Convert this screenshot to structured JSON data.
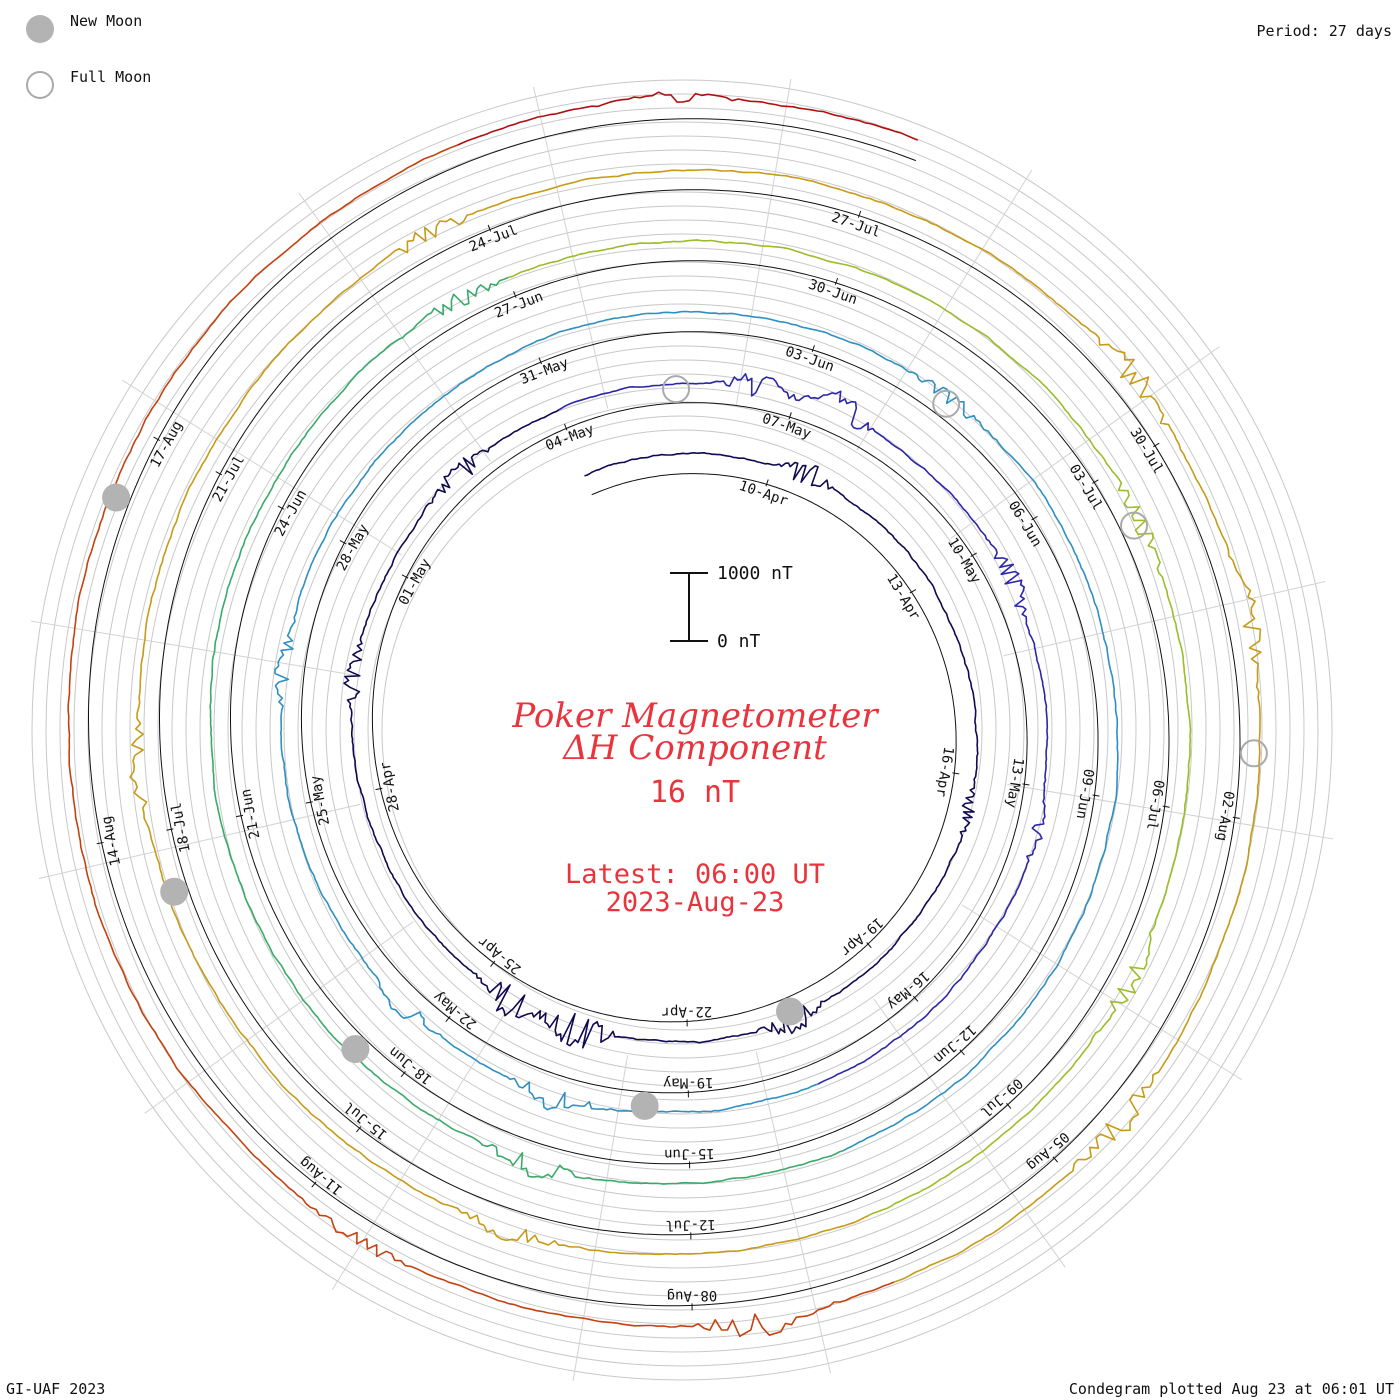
{
  "legend": {
    "new_moon_label": "New Moon",
    "full_moon_label": "Full Moon",
    "new_moon_color": "#b3b3b3",
    "full_moon_color": "#aaaaaa"
  },
  "header": {
    "period": "Period: 27 days"
  },
  "footer": {
    "credit": "GI-UAF 2023",
    "plotted": "Condegram plotted Aug 23 at 06:01 UT"
  },
  "center": {
    "title_line1": "Poker Magnetometer",
    "title_line2": "ΔH Component",
    "value": "16 nT",
    "latest_line1": "Latest: 06:00 UT",
    "latest_line2": "2023-Aug-23"
  },
  "scale": {
    "top_label": "1000 nT",
    "bottom_label": "0 nT",
    "span_nT": 1000
  },
  "chart_data": {
    "type": "line",
    "subtype": "condegram-spiral",
    "period_days": 27,
    "start_date": "2023-04-07",
    "end_date": "2023-08-23",
    "grid": true,
    "series_colors": [
      "#100a50",
      "#2c27a8",
      "#2f8fc0",
      "#3aaa6a",
      "#9bbd2a",
      "#c79a18",
      "#c4420f",
      "#b01010"
    ],
    "date_labels": [
      "10-Apr",
      "13-Apr",
      "16-Apr",
      "19-Apr",
      "22-Apr",
      "25-Apr",
      "28-Apr",
      "01-May",
      "04-May",
      "07-May",
      "10-May",
      "13-May",
      "16-May",
      "19-May",
      "22-May",
      "25-May",
      "28-May",
      "31-May",
      "03-Jun",
      "06-Jun",
      "09-Jun",
      "12-Jun",
      "15-Jun",
      "18-Jun",
      "21-Jun",
      "24-Jun",
      "27-Jun",
      "30-Jun",
      "03-Jul",
      "06-Jul",
      "09-Jul",
      "12-Jul",
      "15-Jul",
      "18-Jul",
      "21-Jul",
      "24-Jul",
      "27-Jul",
      "30-Jul",
      "02-Aug",
      "05-Aug",
      "08-Aug",
      "11-Aug",
      "14-Aug",
      "17-Aug"
    ],
    "new_moons": [
      "2023-04-20",
      "2023-05-19",
      "2023-06-18",
      "2023-07-17",
      "2023-08-16"
    ],
    "full_moons": [
      "2023-05-05",
      "2023-06-04",
      "2023-07-03",
      "2023-08-01"
    ],
    "disturbances": [
      {
        "date": "2023-04-10",
        "peak_nT": 260
      },
      {
        "date": "2023-04-16",
        "peak_nT": 120
      },
      {
        "date": "2023-04-20",
        "peak_nT": 230
      },
      {
        "date": "2023-04-23",
        "peak_nT": 480
      },
      {
        "date": "2023-04-24",
        "peak_nT": 300
      },
      {
        "date": "2023-04-29",
        "peak_nT": 180
      },
      {
        "date": "2023-05-02",
        "peak_nT": 220
      },
      {
        "date": "2023-05-06",
        "peak_nT": 260
      },
      {
        "date": "2023-05-07",
        "peak_nT": 330
      },
      {
        "date": "2023-05-10",
        "peak_nT": 200
      },
      {
        "date": "2023-05-13",
        "peak_nT": 120
      },
      {
        "date": "2023-05-20",
        "peak_nT": 260
      },
      {
        "date": "2023-05-22",
        "peak_nT": 180
      },
      {
        "date": "2023-05-26",
        "peak_nT": 150
      },
      {
        "date": "2023-06-04",
        "peak_nT": 140
      },
      {
        "date": "2023-06-16",
        "peak_nT": 220
      },
      {
        "date": "2023-06-26",
        "peak_nT": 160
      },
      {
        "date": "2023-07-03",
        "peak_nT": 170
      },
      {
        "date": "2023-07-07",
        "peak_nT": 220
      },
      {
        "date": "2023-07-13",
        "peak_nT": 160
      },
      {
        "date": "2023-07-18",
        "peak_nT": 190
      },
      {
        "date": "2023-07-23",
        "peak_nT": 150
      },
      {
        "date": "2023-07-29",
        "peak_nT": 240
      },
      {
        "date": "2023-07-31",
        "peak_nT": 200
      },
      {
        "date": "2023-08-04",
        "peak_nT": 220
      },
      {
        "date": "2023-08-07",
        "peak_nT": 260
      },
      {
        "date": "2023-08-10",
        "peak_nT": 120
      },
      {
        "date": "2023-08-21",
        "peak_nT": 110
      }
    ]
  }
}
